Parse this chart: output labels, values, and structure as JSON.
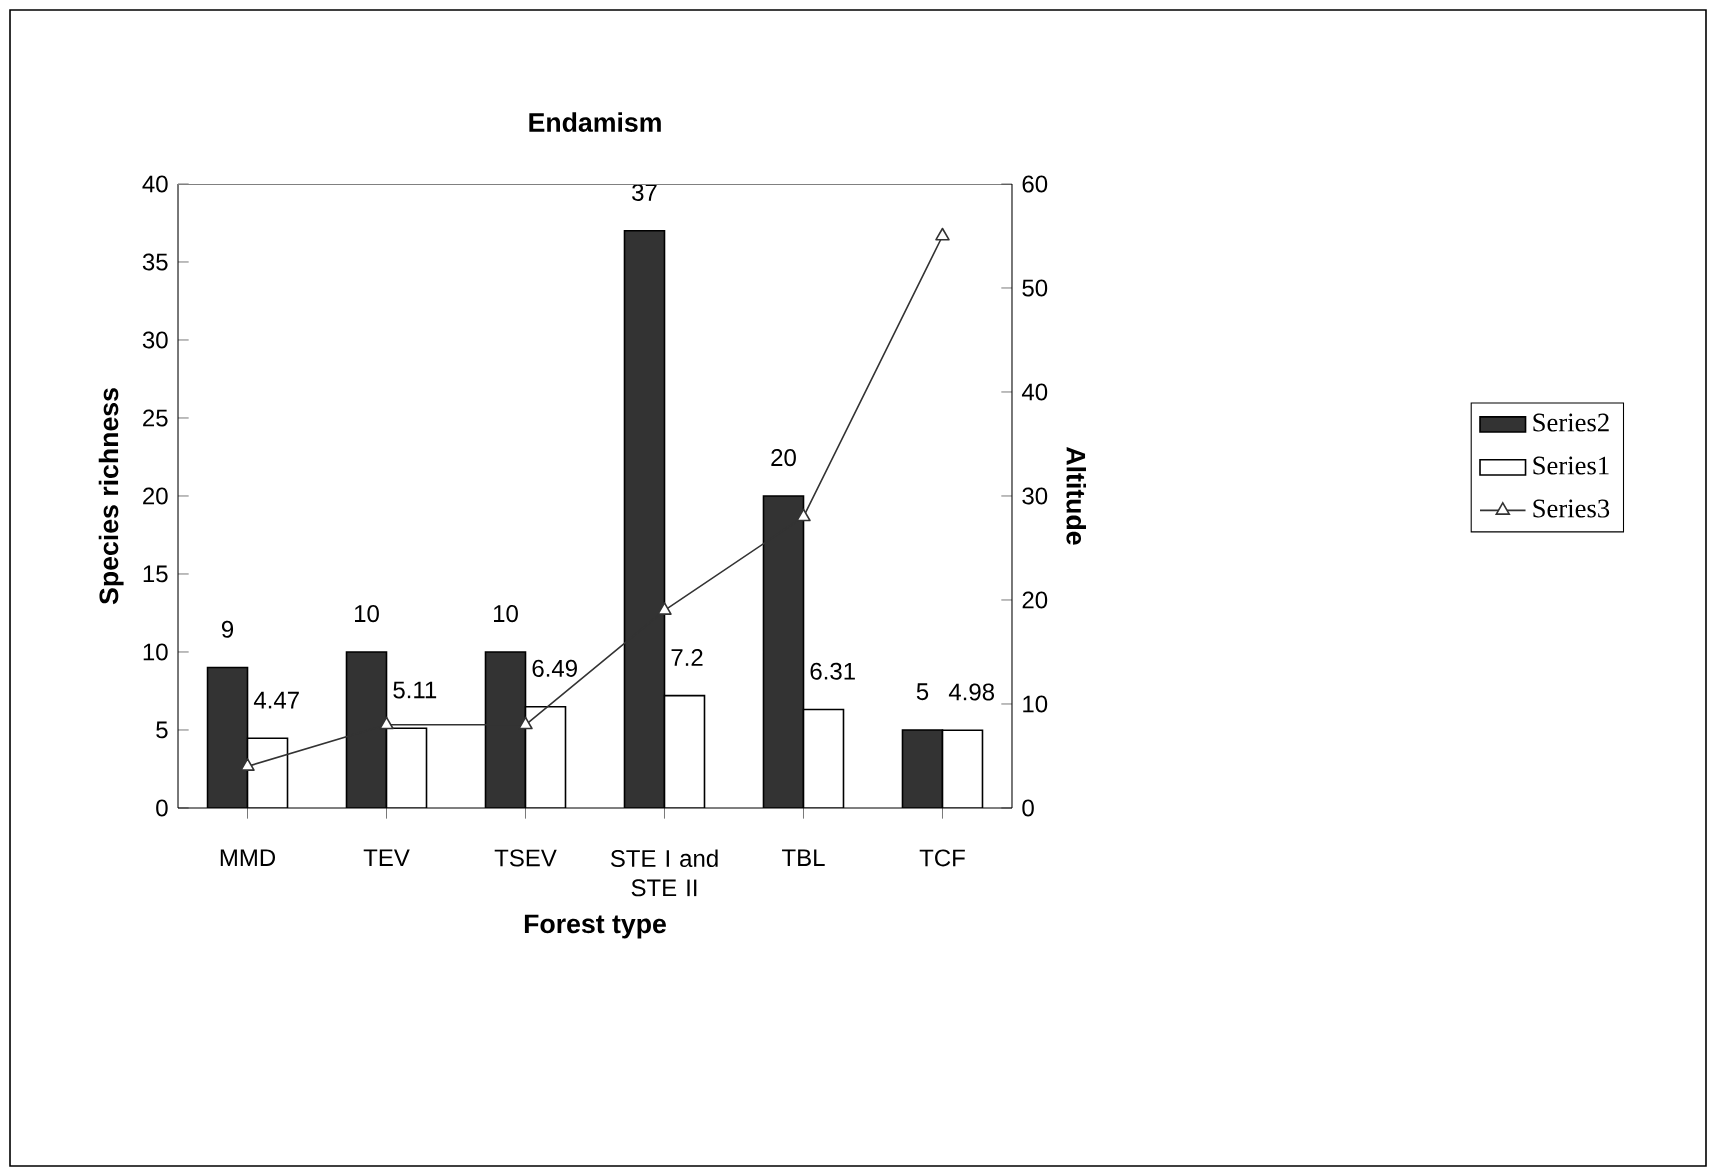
{
  "chart_data": {
    "type": "bar",
    "title": "Endamism",
    "xlabel": "Forest type",
    "ylabel": "Species richness",
    "y2label": "Altitude",
    "categories": [
      "MMD",
      "TEV",
      "TSEV",
      "STE I and STE II",
      "TBL",
      "TCF"
    ],
    "series": [
      {
        "name": "Series2",
        "color": "#333333",
        "values": [
          9,
          10,
          10,
          37,
          20,
          5
        ],
        "value_labels": [
          "9",
          "10",
          "10",
          "37",
          "20",
          "5"
        ]
      },
      {
        "name": "Series1",
        "color": "#ffffff",
        "values": [
          4.47,
          5.11,
          6.49,
          7.2,
          6.31,
          4.98
        ],
        "value_labels": [
          "4.47",
          "5.11",
          "6.49",
          "7.2",
          "6.31",
          "4.98"
        ]
      },
      {
        "name": "Series3",
        "type": "line",
        "axis": "y2",
        "marker": "triangle",
        "color": "#333333",
        "values": [
          4,
          8,
          8,
          19,
          28,
          55
        ]
      }
    ],
    "ylim": [
      0,
      40
    ],
    "yticks": [
      0,
      5,
      10,
      15,
      20,
      25,
      30,
      35,
      40
    ],
    "y2lim": [
      0,
      60
    ],
    "y2ticks": [
      0,
      10,
      20,
      30,
      40,
      50,
      60
    ],
    "legend": "right",
    "grid": false
  }
}
